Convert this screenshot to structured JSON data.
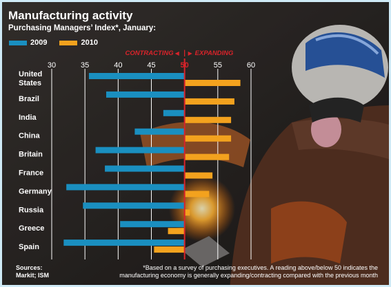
{
  "title": "Manufacturing activity",
  "subtitle": "Purchasing Managers’ Index*, January:",
  "legend": [
    {
      "label": "2009",
      "color": "#1a8fc0"
    },
    {
      "label": "2010",
      "color": "#f3a21e"
    }
  ],
  "annotations": {
    "contracting": "CONTRACTING",
    "expanding": "EXPANDING",
    "arrow_left": "◀",
    "arrow_right": "▶",
    "divider": "|",
    "threshold_label": "50"
  },
  "sources": "Sources:\nMarkit; ISM",
  "footnote": "*Based on a survey of purchasing executives. A reading above/below 50 indicates the manufacturing economy is generally expanding/contracting compared with the previous month",
  "chart_data": {
    "type": "bar",
    "orientation": "horizontal",
    "title": "Manufacturing activity",
    "subtitle": "Purchasing Managers’ Index*, January:",
    "baseline": 50,
    "xlim": [
      30,
      60
    ],
    "x_ticks": [
      30,
      35,
      40,
      45,
      50,
      55,
      60
    ],
    "categories": [
      "United States",
      "Brazil",
      "India",
      "China",
      "Britain",
      "France",
      "Germany",
      "Russia",
      "Greece",
      "Spain"
    ],
    "series": [
      {
        "name": "2009",
        "color": "#1a8fc0",
        "values": [
          35.6,
          38.2,
          46.8,
          42.5,
          36.6,
          38.0,
          32.2,
          34.7,
          40.3,
          31.8
        ]
      },
      {
        "name": "2010",
        "color": "#f3a21e",
        "values": [
          58.4,
          57.5,
          57.0,
          57.0,
          56.7,
          54.2,
          53.7,
          50.8,
          47.5,
          45.4
        ]
      }
    ],
    "legend_position": "top-left",
    "grid": true
  }
}
